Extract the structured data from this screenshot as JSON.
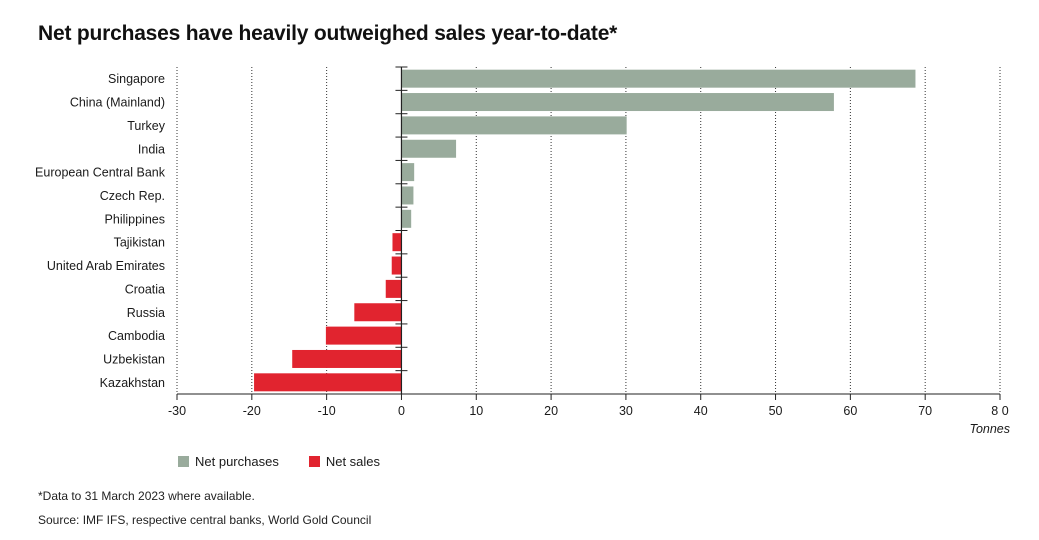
{
  "title": "Net purchases have heavily outweighed sales year-to-date*",
  "footnote": "*Data to 31 March 2023 where available.",
  "source": "Source: IMF IFS, respective central banks, World Gold Council",
  "colors": {
    "purchases": "#99ab9c",
    "sales": "#e1242f"
  },
  "chart_data": {
    "type": "bar",
    "orientation": "horizontal",
    "categories": [
      "Singapore",
      "China (Mainland)",
      "Turkey",
      "India",
      "European Central Bank",
      "Czech Rep.",
      "Philippines",
      "Tajikistan",
      "United Arab Emirates",
      "Croatia",
      "Russia",
      "Cambodia",
      "Uzbekistan",
      "Kazakhstan"
    ],
    "values": [
      68.7,
      57.8,
      30.1,
      7.3,
      1.7,
      1.6,
      1.3,
      -1.2,
      -1.3,
      -2.1,
      -6.3,
      -10.1,
      -14.6,
      -19.7
    ],
    "xlim": [
      -30,
      80
    ],
    "xticks": [
      "-30",
      "-20",
      "-10",
      "0",
      "10",
      "20",
      "30",
      "40",
      "50",
      "60",
      "70",
      "8 0"
    ],
    "xlabel": "Tonnes",
    "grid": "vertical dotted",
    "legend_position": "bottom-left",
    "legend": [
      {
        "name": "Net purchases",
        "color": "#99ab9c"
      },
      {
        "name": "Net sales",
        "color": "#e1242f"
      }
    ]
  }
}
